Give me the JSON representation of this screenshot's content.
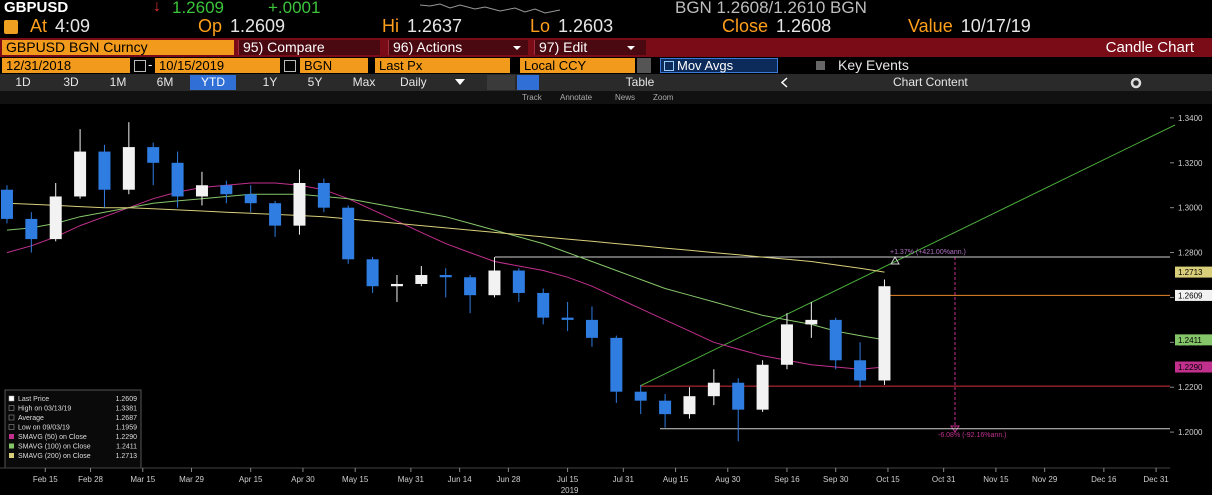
{
  "quote": {
    "ticker": "GBPUSD",
    "direction": "↓",
    "last": "1.2609",
    "change": "+.0001",
    "bid_ask": "BGN 1.2608/1.2610 BGN",
    "fields": [
      {
        "label": "At",
        "value": "4:09"
      },
      {
        "label": "Op",
        "value": "1.2609"
      },
      {
        "label": "Hi",
        "value": "1.2637"
      },
      {
        "label": "Lo",
        "value": "1.2603"
      },
      {
        "label": "Close",
        "value": "1.2608"
      },
      {
        "label": "Value",
        "value": "10/17/19"
      }
    ]
  },
  "menu": {
    "security": "GBPUSD BGN Curncy",
    "buttons": [
      "95) Compare",
      "96) Actions",
      "97) Edit"
    ],
    "view": "Candle Chart"
  },
  "settings": {
    "start": "12/31/2018",
    "separator": "-",
    "end": "10/15/2019",
    "source": "BGN",
    "field": "Last Px",
    "currency": "Local CCY",
    "studies": "Mov Avgs",
    "events": "Key Events"
  },
  "periods": {
    "options": [
      "1D",
      "3D",
      "1M",
      "6M",
      "YTD",
      "1Y",
      "5Y",
      "Max"
    ],
    "selected": 4,
    "frequency": "Daily",
    "table": "Table",
    "content": "Chart Content"
  },
  "tools": [
    "Track",
    "Annotate",
    "News",
    "Zoom"
  ],
  "chart_data": {
    "type": "candlestick",
    "x": [
      35,
      42,
      49,
      56,
      63,
      70,
      77,
      84,
      91,
      98,
      105,
      112,
      119,
      126,
      133,
      140,
      147,
      154,
      161,
      168,
      175,
      182,
      189,
      196,
      203,
      210,
      217,
      224,
      231,
      238,
      245,
      252,
      259,
      266,
      273,
      280,
      287
    ],
    "open": [
      1.308,
      1.295,
      1.286,
      1.305,
      1.325,
      1.308,
      1.327,
      1.32,
      1.305,
      1.31,
      1.306,
      1.302,
      1.292,
      1.311,
      1.3,
      1.277,
      1.265,
      1.266,
      1.27,
      1.269,
      1.261,
      1.272,
      1.262,
      1.251,
      1.25,
      1.242,
      1.218,
      1.214,
      1.208,
      1.216,
      1.222,
      1.21,
      1.23,
      1.248,
      1.25,
      1.232,
      1.223
    ],
    "high": [
      1.31,
      1.298,
      1.311,
      1.335,
      1.328,
      1.3381,
      1.329,
      1.325,
      1.316,
      1.312,
      1.31,
      1.303,
      1.317,
      1.313,
      1.301,
      1.278,
      1.27,
      1.274,
      1.273,
      1.27,
      1.278,
      1.273,
      1.264,
      1.258,
      1.256,
      1.243,
      1.221,
      1.217,
      1.22,
      1.228,
      1.224,
      1.232,
      1.253,
      1.258,
      1.251,
      1.24,
      1.268
    ],
    "low": [
      1.293,
      1.28,
      1.285,
      1.304,
      1.3,
      1.306,
      1.31,
      1.3,
      1.301,
      1.302,
      1.298,
      1.287,
      1.288,
      1.298,
      1.275,
      1.262,
      1.258,
      1.265,
      1.26,
      1.253,
      1.26,
      1.258,
      1.248,
      1.245,
      1.238,
      1.213,
      1.208,
      1.202,
      1.206,
      1.212,
      1.1959,
      1.209,
      1.228,
      1.242,
      1.228,
      1.22,
      1.221
    ],
    "close": [
      1.295,
      1.286,
      1.305,
      1.325,
      1.308,
      1.327,
      1.32,
      1.305,
      1.31,
      1.306,
      1.302,
      1.292,
      1.311,
      1.3,
      1.277,
      1.265,
      1.266,
      1.27,
      1.269,
      1.261,
      1.272,
      1.262,
      1.251,
      1.25,
      1.242,
      1.218,
      1.214,
      1.208,
      1.216,
      1.222,
      1.21,
      1.23,
      1.248,
      1.25,
      1.232,
      1.223,
      1.265
    ],
    "up_color": "#f2f2f2",
    "down_color": "#2f7de1",
    "series": [
      {
        "name": "SMAVG (50)  on Close",
        "color": "#c2308e",
        "last_label": "1.2290",
        "values": [
          1.28,
          1.283,
          1.287,
          1.292,
          1.296,
          1.3,
          1.304,
          1.307,
          1.309,
          1.31,
          1.311,
          1.311,
          1.31,
          1.308,
          1.304,
          1.299,
          1.294,
          1.289,
          1.284,
          1.28,
          1.276,
          1.274,
          1.272,
          1.269,
          1.265,
          1.26,
          1.255,
          1.25,
          1.245,
          1.24,
          1.237,
          1.234,
          1.232,
          1.23,
          1.229,
          1.228,
          1.229
        ]
      },
      {
        "name": "SMAVG (100)  on Close",
        "color": "#86c66a",
        "last_label": "1.2411",
        "values": [
          1.29,
          1.291,
          1.293,
          1.296,
          1.298,
          1.3,
          1.302,
          1.303,
          1.304,
          1.305,
          1.306,
          1.306,
          1.306,
          1.305,
          1.304,
          1.302,
          1.3,
          1.298,
          1.296,
          1.293,
          1.29,
          1.287,
          1.284,
          1.28,
          1.276,
          1.272,
          1.268,
          1.264,
          1.261,
          1.258,
          1.255,
          1.252,
          1.25,
          1.248,
          1.245,
          1.243,
          1.2411
        ]
      },
      {
        "name": "SMAVG (200)  on Close",
        "color": "#d9cf7a",
        "last_label": "1.2713",
        "values": [
          1.302,
          1.3015,
          1.301,
          1.3005,
          1.3,
          1.3,
          1.2995,
          1.299,
          1.2985,
          1.298,
          1.2975,
          1.297,
          1.2965,
          1.296,
          1.295,
          1.294,
          1.293,
          1.292,
          1.291,
          1.29,
          1.289,
          1.288,
          1.287,
          1.286,
          1.285,
          1.284,
          1.283,
          1.282,
          1.281,
          1.28,
          1.279,
          1.278,
          1.277,
          1.276,
          1.2745,
          1.273,
          1.2713
        ]
      }
    ],
    "legend_rows": [
      {
        "label": "Last Price",
        "value": "1.2609"
      },
      {
        "label": "High on 03/13/19",
        "value": "1.3381"
      },
      {
        "label": "Average",
        "value": "1.2687"
      },
      {
        "label": "Low on 09/03/19",
        "value": "1.1959"
      }
    ],
    "levels": [
      {
        "value": 1.278,
        "color": "#cfcfcf"
      },
      {
        "value": 1.2609,
        "color": "#e8862a"
      },
      {
        "value": 1.2205,
        "color": "#d0303a"
      },
      {
        "value": 1.2015,
        "color": "#cfcfcf"
      }
    ],
    "annotations": [
      "+1.37% (+421.00%ann.)",
      "-6.08% (-92.16%ann.)"
    ],
    "xlim": [
      33,
      369
    ],
    "xticks": [
      {
        "value": 46,
        "label": "Feb 15"
      },
      {
        "value": 59,
        "label": "Feb 28"
      },
      {
        "value": 74,
        "label": "Mar 15"
      },
      {
        "value": 88,
        "label": "Mar 29"
      },
      {
        "value": 105,
        "label": "Apr 15"
      },
      {
        "value": 120,
        "label": "Apr 30"
      },
      {
        "value": 135,
        "label": "May 15"
      },
      {
        "value": 151,
        "label": "May 31"
      },
      {
        "value": 165,
        "label": "Jun 14"
      },
      {
        "value": 179,
        "label": "Jun 28"
      },
      {
        "value": 196,
        "label": "Jul 15"
      },
      {
        "value": 212,
        "label": "Jul 31"
      },
      {
        "value": 227,
        "label": "Aug 15"
      },
      {
        "value": 242,
        "label": "Aug 30"
      },
      {
        "value": 259,
        "label": "Sep 16"
      },
      {
        "value": 273,
        "label": "Sep 30"
      },
      {
        "value": 288,
        "label": "Oct 15"
      },
      {
        "value": 304,
        "label": "Oct 31"
      },
      {
        "value": 319,
        "label": "Nov 15"
      },
      {
        "value": 333,
        "label": "Nov 29"
      },
      {
        "value": 350,
        "label": "Dec 16"
      },
      {
        "value": 365,
        "label": "Dec 31"
      }
    ],
    "x_label": "2019",
    "ylim": [
      1.184,
      1.3462
    ],
    "yticks": [
      {
        "value": 1.2,
        "label": "1.2000"
      },
      {
        "value": 1.22,
        "label": "1.2200"
      },
      {
        "value": 1.24,
        "label": "1.2400"
      },
      {
        "value": 1.26,
        "label": "1.2600"
      },
      {
        "value": 1.28,
        "label": "1.2800"
      },
      {
        "value": 1.3,
        "label": "1.3000"
      },
      {
        "value": 1.32,
        "label": "1.3200"
      },
      {
        "value": 1.34,
        "label": "1.3400"
      }
    ]
  }
}
